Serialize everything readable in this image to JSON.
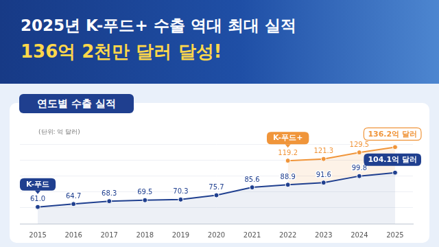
{
  "chart_data": {
    "type": "line",
    "title": "2025년 K-푸드+ 수출 역대 최대 실적",
    "subtitle": "136억 2천만 달러 달성!",
    "annotations": [
      "연도별 수출 실적"
    ],
    "y_label": "(단위: 억 달러)",
    "categories": [
      "2015",
      "2016",
      "2017",
      "2018",
      "2019",
      "2020",
      "2021",
      "2022",
      "2023",
      "2024",
      "2025"
    ],
    "series": [
      {
        "name": "K-푸드",
        "color": "#1f3f8f",
        "values": [
          61.0,
          64.7,
          68.3,
          69.5,
          70.3,
          75.7,
          85.6,
          88.9,
          91.6,
          99.8,
          104.1
        ],
        "value_labels": [
          "61.0",
          "64.7",
          "68.3",
          "69.5",
          "70.3",
          "75.7",
          "85.6",
          "88.9",
          "91.6",
          "99.8",
          "104.1억 달러"
        ]
      },
      {
        "name": "K-푸드+",
        "color": "#f0953a",
        "values": [
          null,
          null,
          null,
          null,
          null,
          null,
          null,
          119.2,
          121.3,
          129.5,
          136.2
        ],
        "value_labels": [
          null,
          null,
          null,
          null,
          null,
          null,
          null,
          "119.2",
          "121.3",
          "129.5",
          "136.2억 달러"
        ]
      }
    ],
    "ylim": [
      40,
      140
    ],
    "yticks": [
      40,
      60,
      80,
      100,
      120,
      140
    ],
    "grid": true,
    "tick_labels": "x",
    "data_labels": true,
    "marker": "circle"
  }
}
